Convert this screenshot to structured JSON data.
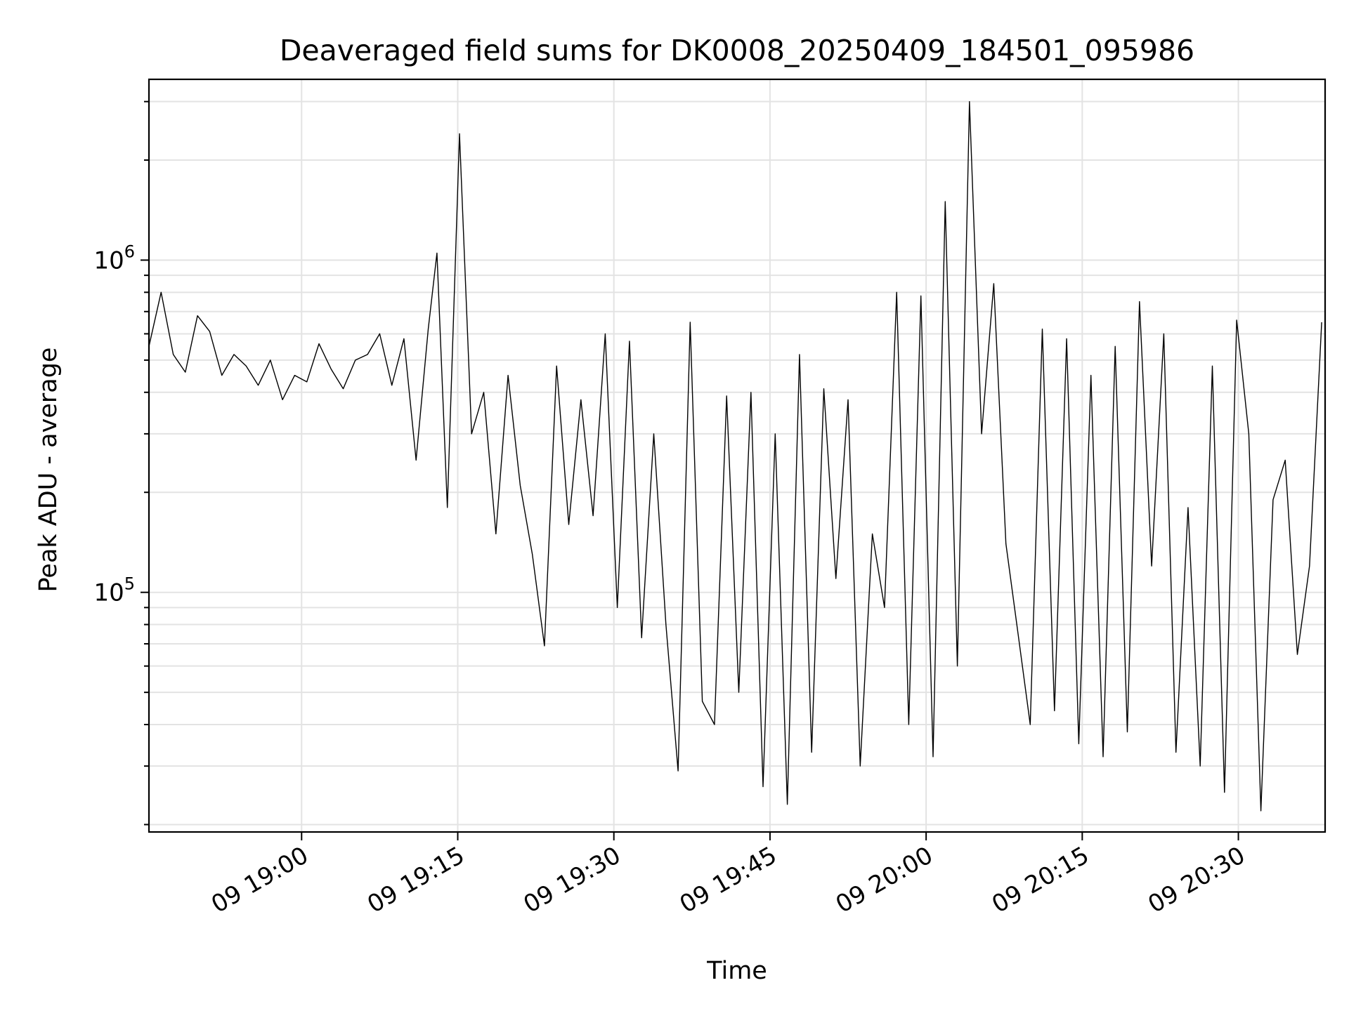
{
  "chart_data": {
    "type": "line",
    "title": "Deaveraged field sums for DK0008_20250409_184501_095986",
    "xlabel": "Time",
    "ylabel": "Peak ADU - average",
    "yscale": "log",
    "grid": true,
    "xlim": [
      "2025-04-09 18:45:20",
      "2025-04-09 20:38:20"
    ],
    "ylim": [
      19000,
      3500000
    ],
    "x_ticks": [
      {
        "value": "2025-04-09 19:00",
        "label": "09 19:00"
      },
      {
        "value": "2025-04-09 19:15",
        "label": "09 19:15"
      },
      {
        "value": "2025-04-09 19:30",
        "label": "09 19:30"
      },
      {
        "value": "2025-04-09 19:45",
        "label": "09 19:45"
      },
      {
        "value": "2025-04-09 20:00",
        "label": "09 20:00"
      },
      {
        "value": "2025-04-09 20:15",
        "label": "09 20:15"
      },
      {
        "value": "2025-04-09 20:30",
        "label": "09 20:30"
      }
    ],
    "y_ticks": [
      {
        "value": 100000,
        "base": "10",
        "exp": "5"
      },
      {
        "value": 1000000,
        "base": "10",
        "exp": "6"
      }
    ],
    "series": [
      {
        "color": "#000000",
        "x": [
          "2025-04-09 18:45:20",
          "2025-04-09 18:46:30",
          "2025-04-09 18:47:40",
          "2025-04-09 18:48:50",
          "2025-04-09 18:50:00",
          "2025-04-09 18:51:10",
          "2025-04-09 18:52:20",
          "2025-04-09 18:53:30",
          "2025-04-09 18:54:40",
          "2025-04-09 18:55:50",
          "2025-04-09 18:57:00",
          "2025-04-09 18:58:10",
          "2025-04-09 18:59:20",
          "2025-04-09 19:00:30",
          "2025-04-09 19:01:40",
          "2025-04-09 19:02:50",
          "2025-04-09 19:04:00",
          "2025-04-09 19:05:10",
          "2025-04-09 19:06:20",
          "2025-04-09 19:07:30",
          "2025-04-09 19:08:40",
          "2025-04-09 19:09:50",
          "2025-04-09 19:11:00",
          "2025-04-09 19:12:10",
          "2025-04-09 19:13:00",
          "2025-04-09 19:14:00",
          "2025-04-09 19:15:10",
          "2025-04-09 19:16:20",
          "2025-04-09 19:17:30",
          "2025-04-09 19:18:40",
          "2025-04-09 19:19:50",
          "2025-04-09 19:21:00",
          "2025-04-09 19:22:10",
          "2025-04-09 19:23:20",
          "2025-04-09 19:24:30",
          "2025-04-09 19:25:40",
          "2025-04-09 19:26:50",
          "2025-04-09 19:28:00",
          "2025-04-09 19:29:10",
          "2025-04-09 19:30:20",
          "2025-04-09 19:31:30",
          "2025-04-09 19:32:40",
          "2025-04-09 19:33:50",
          "2025-04-09 19:35:00",
          "2025-04-09 19:36:10",
          "2025-04-09 19:37:20",
          "2025-04-09 19:38:30",
          "2025-04-09 19:39:40",
          "2025-04-09 19:40:50",
          "2025-04-09 19:42:00",
          "2025-04-09 19:43:10",
          "2025-04-09 19:44:20",
          "2025-04-09 19:45:30",
          "2025-04-09 19:46:40",
          "2025-04-09 19:47:50",
          "2025-04-09 19:49:00",
          "2025-04-09 19:50:10",
          "2025-04-09 19:51:20",
          "2025-04-09 19:52:30",
          "2025-04-09 19:53:40",
          "2025-04-09 19:54:50",
          "2025-04-09 19:56:00",
          "2025-04-09 19:57:10",
          "2025-04-09 19:58:20",
          "2025-04-09 19:59:30",
          "2025-04-09 20:00:40",
          "2025-04-09 20:01:50",
          "2025-04-09 20:03:00",
          "2025-04-09 20:04:10",
          "2025-04-09 20:05:20",
          "2025-04-09 20:06:30",
          "2025-04-09 20:07:40",
          "2025-04-09 20:08:50",
          "2025-04-09 20:10:00",
          "2025-04-09 20:11:10",
          "2025-04-09 20:12:20",
          "2025-04-09 20:13:30",
          "2025-04-09 20:14:40",
          "2025-04-09 20:15:50",
          "2025-04-09 20:17:00",
          "2025-04-09 20:18:10",
          "2025-04-09 20:19:20",
          "2025-04-09 20:20:30",
          "2025-04-09 20:21:40",
          "2025-04-09 20:22:50",
          "2025-04-09 20:24:00",
          "2025-04-09 20:25:10",
          "2025-04-09 20:26:20",
          "2025-04-09 20:27:30",
          "2025-04-09 20:28:40",
          "2025-04-09 20:29:50",
          "2025-04-09 20:31:00",
          "2025-04-09 20:32:10",
          "2025-04-09 20:33:20",
          "2025-04-09 20:34:30",
          "2025-04-09 20:35:40",
          "2025-04-09 20:36:50",
          "2025-04-09 20:38:00"
        ],
        "y": [
          550000,
          800000,
          520000,
          460000,
          680000,
          610000,
          450000,
          520000,
          480000,
          420000,
          500000,
          380000,
          450000,
          430000,
          560000,
          470000,
          410000,
          500000,
          520000,
          600000,
          420000,
          580000,
          250000,
          620000,
          1050000,
          180000,
          2400000,
          300000,
          400000,
          150000,
          450000,
          210000,
          130000,
          69000,
          480000,
          160000,
          380000,
          170000,
          600000,
          90000,
          570000,
          73000,
          300000,
          80000,
          29000,
          650000,
          47000,
          40000,
          390000,
          50000,
          400000,
          26000,
          300000,
          23000,
          520000,
          33000,
          410000,
          110000,
          380000,
          30000,
          150000,
          90000,
          800000,
          40000,
          780000,
          32000,
          1500000,
          60000,
          3000000,
          300000,
          850000,
          140000,
          75000,
          40000,
          620000,
          44000,
          580000,
          35000,
          450000,
          32000,
          550000,
          38000,
          750000,
          120000,
          600000,
          33000,
          180000,
          30000,
          480000,
          25000,
          660000,
          300000,
          22000,
          190000,
          250000,
          65000,
          120000,
          650000
        ],
        "y_exact": false
      }
    ]
  }
}
